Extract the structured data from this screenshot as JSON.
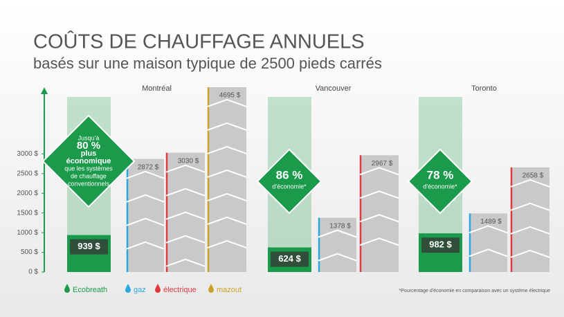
{
  "chart_data": {
    "type": "bar",
    "title": "COÛTS DE CHAUFFAGE ANNUELS",
    "subtitle": "basés sur une maison typique de 2500 pieds carrés",
    "categories": [
      "Montréal",
      "Vancouver",
      "Toronto"
    ],
    "series": [
      {
        "name": "Ecobreath",
        "color": "#1a9a4a",
        "values": [
          939,
          624,
          982
        ],
        "value_labels": [
          "939 $",
          "624 $",
          "982 $"
        ]
      },
      {
        "name": "gaz",
        "color": "#2aa7de",
        "values": [
          2872,
          1378,
          1489
        ],
        "value_labels": [
          "2872 $",
          "1378 $",
          "1489 $"
        ]
      },
      {
        "name": "électrique",
        "color": "#e03a3e",
        "values": [
          3030,
          2967,
          2658
        ],
        "value_labels": [
          "3030 $",
          "2967 $",
          "2658 $"
        ]
      },
      {
        "name": "mazout",
        "color": "#c9a227",
        "values": [
          4695,
          null,
          null
        ],
        "value_labels": [
          "4695 $",
          null,
          null
        ]
      }
    ],
    "ylim": [
      0,
      4800
    ],
    "yticks": [
      {
        "value": 0,
        "label": "0 $"
      },
      {
        "value": 500,
        "label": "500 $"
      },
      {
        "value": 1000,
        "label": "1000 $"
      },
      {
        "value": 1500,
        "label": "1500 $"
      },
      {
        "value": 2000,
        "label": "2000 $"
      },
      {
        "value": 2500,
        "label": "2500 $"
      },
      {
        "value": 3000,
        "label": "3000 $"
      }
    ],
    "annotations": [
      {
        "lines": [
          "Jusqu'à",
          "80 %",
          "plus",
          "économique",
          "que les systèmes",
          "de chauffage",
          "conventionnels"
        ]
      },
      {
        "lines": [
          "86 %",
          "d'économie*"
        ]
      },
      {
        "lines": [
          "78 %",
          "d'économie*"
        ]
      }
    ],
    "footnote": "*Pourcentage d'économie en comparaison avec un système électrique"
  }
}
